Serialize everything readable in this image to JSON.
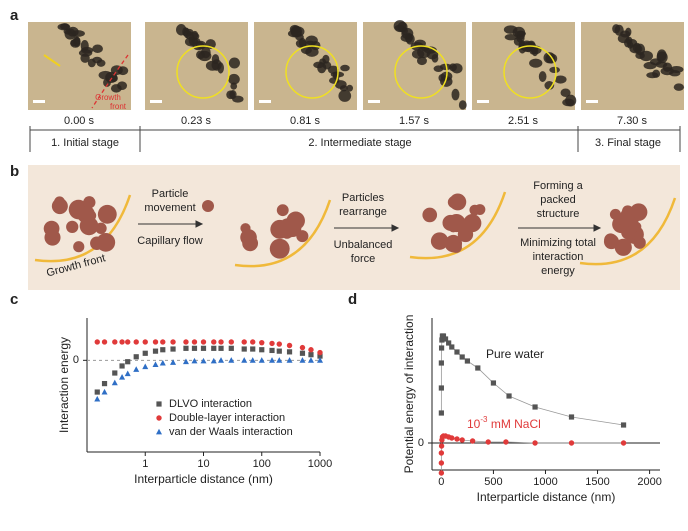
{
  "panel_a": {
    "label": "a",
    "growth_front": [
      "Growth",
      "front"
    ],
    "times": [
      "0.00 s",
      "0.23 s",
      "0.81 s",
      "1.57 s",
      "2.51 s",
      "7.30 s"
    ],
    "stages": [
      "1. Initial stage",
      "2. Intermediate stage",
      "3. Final stage"
    ]
  },
  "panel_b": {
    "label": "b",
    "growth_front": "Growth front",
    "step1_top": [
      "Particle",
      "movement"
    ],
    "step1_bottom": "Capillary flow",
    "step2_top": [
      "Particles",
      "rearrange"
    ],
    "step2_bottom": [
      "Unbalanced",
      "force"
    ],
    "step3_top": [
      "Forming a",
      "packed",
      "structure"
    ],
    "step3_bottom": [
      "Minimizing total",
      "interaction",
      "energy"
    ]
  },
  "chart_data": [
    {
      "type": "scatter",
      "label": "c",
      "xlabel": "Interparticle distance (nm)",
      "ylabel": "Interaction energy",
      "xscale": "log",
      "xlim": [
        0.1,
        1000
      ],
      "xticks": [
        1,
        10,
        100,
        1000
      ],
      "ylim": [
        -1.3,
        0.6
      ],
      "yticks": [
        0
      ],
      "zero_line": true,
      "legend": "lower right",
      "x": [
        0.15,
        0.2,
        0.3,
        0.4,
        0.5,
        0.7,
        1,
        1.5,
        2,
        3,
        5,
        7,
        10,
        15,
        20,
        30,
        50,
        70,
        100,
        150,
        200,
        300,
        500,
        700,
        1000
      ],
      "series": [
        {
          "name": "DLVO interaction",
          "color": "#555555",
          "marker": "square",
          "values": [
            -0.45,
            -0.33,
            -0.18,
            -0.08,
            -0.02,
            0.05,
            0.1,
            0.13,
            0.15,
            0.16,
            0.17,
            0.17,
            0.17,
            0.17,
            0.17,
            0.17,
            0.16,
            0.16,
            0.15,
            0.14,
            0.13,
            0.12,
            0.1,
            0.08,
            0.06
          ]
        },
        {
          "name": "Double-layer interaction",
          "color": "#e03a3a",
          "marker": "circle",
          "values": [
            0.26,
            0.26,
            0.26,
            0.26,
            0.26,
            0.26,
            0.26,
            0.26,
            0.26,
            0.26,
            0.26,
            0.26,
            0.26,
            0.26,
            0.26,
            0.26,
            0.26,
            0.26,
            0.25,
            0.24,
            0.23,
            0.21,
            0.18,
            0.15,
            0.11
          ]
        },
        {
          "name": "van der Waals interaction",
          "color": "#2f6fc6",
          "marker": "triangle",
          "values": [
            -0.55,
            -0.45,
            -0.32,
            -0.24,
            -0.19,
            -0.13,
            -0.09,
            -0.06,
            -0.04,
            -0.03,
            -0.02,
            -0.01,
            -0.01,
            -0.01,
            0,
            0,
            0,
            0,
            0,
            0,
            0,
            0,
            0,
            0,
            0
          ]
        }
      ]
    },
    {
      "type": "line",
      "label": "d",
      "xlabel": "Interparticle distance (nm)",
      "ylabel": "Potential energy of interaction",
      "xlim": [
        -90,
        2100
      ],
      "xticks": [
        0,
        500,
        1000,
        1500,
        2000
      ],
      "ylim": [
        -0.27,
        1.25
      ],
      "yticks": [
        0
      ],
      "zero_line": true,
      "series": [
        {
          "name": "Pure water",
          "color": "#555555",
          "marker": "square",
          "x": [
            0,
            0,
            0,
            2,
            5,
            10,
            20,
            40,
            70,
            100,
            150,
            200,
            250,
            350,
            500,
            650,
            900,
            1250,
            1750
          ],
          "values": [
            0.3,
            0.55,
            0.8,
            0.95,
            1.03,
            1.07,
            1.07,
            1.04,
            1.0,
            0.96,
            0.91,
            0.86,
            0.82,
            0.75,
            0.6,
            0.47,
            0.36,
            0.26,
            0.18
          ]
        },
        {
          "name": {
            "base": "10",
            "sup": "-3",
            "rest": " mM NaCl"
          },
          "color": "#e03a3a",
          "marker": "circle",
          "x": [
            0,
            0,
            0,
            2,
            5,
            10,
            20,
            40,
            70,
            100,
            150,
            200,
            300,
            450,
            620,
            900,
            1250,
            1750
          ],
          "values": [
            -0.3,
            -0.2,
            -0.1,
            -0.03,
            0.03,
            0.06,
            0.07,
            0.07,
            0.06,
            0.05,
            0.04,
            0.03,
            0.02,
            0.01,
            0.01,
            0,
            0,
            0
          ]
        }
      ]
    }
  ]
}
